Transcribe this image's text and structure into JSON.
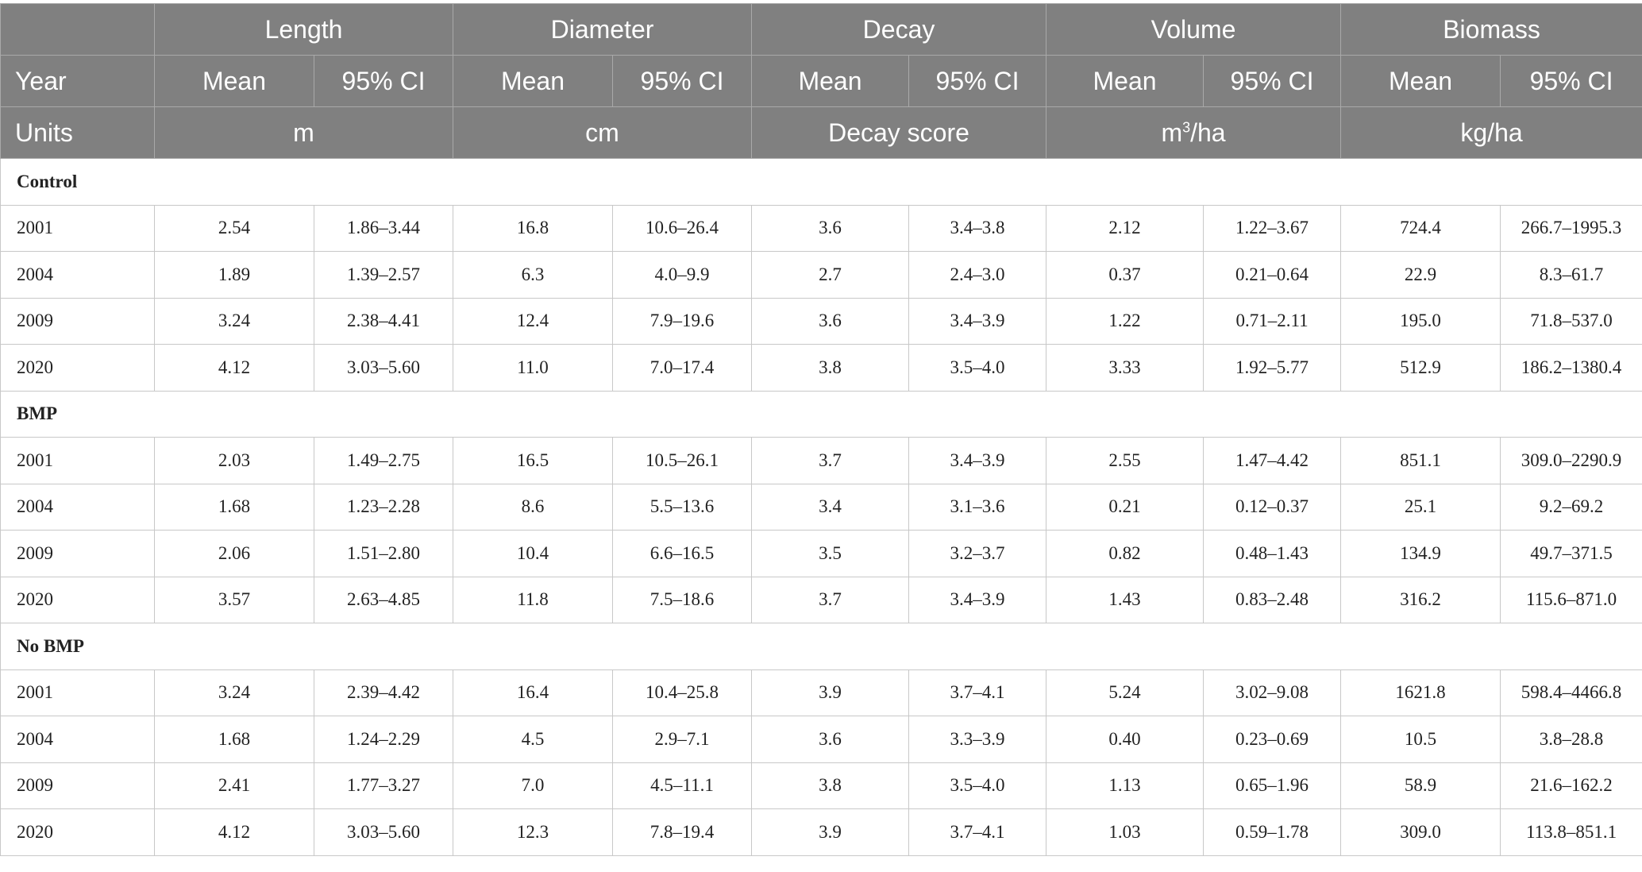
{
  "header": {
    "variables": [
      "Length",
      "Diameter",
      "Decay",
      "Volume",
      "Biomass"
    ],
    "year_label": "Year",
    "mean_label": "Mean",
    "ci_label": "95% CI",
    "units_label": "Units",
    "units": [
      "m",
      "cm",
      "Decay score",
      "m",
      "kg/ha"
    ],
    "volume_unit_sup": "3",
    "volume_unit_suffix": "/ha"
  },
  "groups": [
    {
      "name": "Control",
      "rows": [
        {
          "year": "2001",
          "values": [
            "2.54",
            "1.86–3.44",
            "16.8",
            "10.6–26.4",
            "3.6",
            "3.4–3.8",
            "2.12",
            "1.22–3.67",
            "724.4",
            "266.7–1995.3"
          ]
        },
        {
          "year": "2004",
          "values": [
            "1.89",
            "1.39–2.57",
            "6.3",
            "4.0–9.9",
            "2.7",
            "2.4–3.0",
            "0.37",
            "0.21–0.64",
            "22.9",
            "8.3–61.7"
          ]
        },
        {
          "year": "2009",
          "values": [
            "3.24",
            "2.38–4.41",
            "12.4",
            "7.9–19.6",
            "3.6",
            "3.4–3.9",
            "1.22",
            "0.71–2.11",
            "195.0",
            "71.8–537.0"
          ]
        },
        {
          "year": "2020",
          "values": [
            "4.12",
            "3.03–5.60",
            "11.0",
            "7.0–17.4",
            "3.8",
            "3.5–4.0",
            "3.33",
            "1.92–5.77",
            "512.9",
            "186.2–1380.4"
          ]
        }
      ]
    },
    {
      "name": "BMP",
      "rows": [
        {
          "year": "2001",
          "values": [
            "2.03",
            "1.49–2.75",
            "16.5",
            "10.5–26.1",
            "3.7",
            "3.4–3.9",
            "2.55",
            "1.47–4.42",
            "851.1",
            "309.0–2290.9"
          ]
        },
        {
          "year": "2004",
          "values": [
            "1.68",
            "1.23–2.28",
            "8.6",
            "5.5–13.6",
            "3.4",
            "3.1–3.6",
            "0.21",
            "0.12–0.37",
            "25.1",
            "9.2–69.2"
          ]
        },
        {
          "year": "2009",
          "values": [
            "2.06",
            "1.51–2.80",
            "10.4",
            "6.6–16.5",
            "3.5",
            "3.2–3.7",
            "0.82",
            "0.48–1.43",
            "134.9",
            "49.7–371.5"
          ]
        },
        {
          "year": "2020",
          "values": [
            "3.57",
            "2.63–4.85",
            "11.8",
            "7.5–18.6",
            "3.7",
            "3.4–3.9",
            "1.43",
            "0.83–2.48",
            "316.2",
            "115.6–871.0"
          ]
        }
      ]
    },
    {
      "name": "No BMP",
      "rows": [
        {
          "year": "2001",
          "values": [
            "3.24",
            "2.39–4.42",
            "16.4",
            "10.4–25.8",
            "3.9",
            "3.7–4.1",
            "5.24",
            "3.02–9.08",
            "1621.8",
            "598.4–4466.8"
          ]
        },
        {
          "year": "2004",
          "values": [
            "1.68",
            "1.24–2.29",
            "4.5",
            "2.9–7.1",
            "3.6",
            "3.3–3.9",
            "0.40",
            "0.23–0.69",
            "10.5",
            "3.8–28.8"
          ]
        },
        {
          "year": "2009",
          "values": [
            "2.41",
            "1.77–3.27",
            "7.0",
            "4.5–11.1",
            "3.8",
            "3.5–4.0",
            "1.13",
            "0.65–1.96",
            "58.9",
            "21.6–162.2"
          ]
        },
        {
          "year": "2020",
          "values": [
            "4.12",
            "3.03–5.60",
            "12.3",
            "7.8–19.4",
            "3.9",
            "3.7–4.1",
            "1.03",
            "0.59–1.78",
            "309.0",
            "113.8–851.1"
          ]
        }
      ]
    }
  ]
}
